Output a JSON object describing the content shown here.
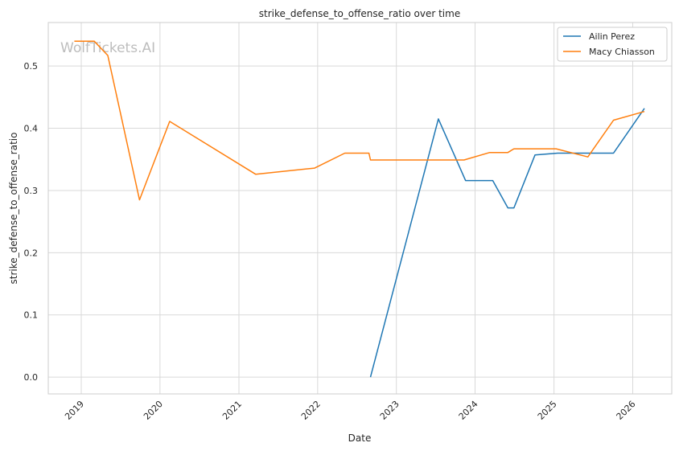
{
  "chart_data": {
    "type": "line",
    "title": "strike_defense_to_offense_ratio over time",
    "xlabel": "Date",
    "ylabel": "strike_defense_to_offense_ratio",
    "watermark": "WolfTickets.AI",
    "xlim": [
      "2018-08-01",
      "2026-07-01"
    ],
    "ylim": [
      -0.027,
      0.57
    ],
    "x_ticks": [
      "2019",
      "2020",
      "2021",
      "2022",
      "2023",
      "2024",
      "2025",
      "2026"
    ],
    "y_ticks": [
      "0.0",
      "0.1",
      "0.2",
      "0.3",
      "0.4",
      "0.5"
    ],
    "grid": true,
    "legend_position": "top-right",
    "series": [
      {
        "name": "Ailin Perez",
        "color": "#1f77b4",
        "points": [
          {
            "x": "2022-09-03",
            "y": 0.0
          },
          {
            "x": "2023-07-15",
            "y": 0.415
          },
          {
            "x": "2023-11-18",
            "y": 0.316
          },
          {
            "x": "2024-03-23",
            "y": 0.316
          },
          {
            "x": "2024-06-01",
            "y": 0.272
          },
          {
            "x": "2024-06-29",
            "y": 0.272
          },
          {
            "x": "2024-10-05",
            "y": 0.357
          },
          {
            "x": "2025-01-18",
            "y": 0.36
          },
          {
            "x": "2025-10-04",
            "y": 0.36
          },
          {
            "x": "2026-02-24",
            "y": 0.432
          }
        ]
      },
      {
        "name": "Macy Chiasson",
        "color": "#ff7f0e",
        "points": [
          {
            "x": "2018-11-30",
            "y": 0.54
          },
          {
            "x": "2019-03-02",
            "y": 0.54
          },
          {
            "x": "2019-05-04",
            "y": 0.517
          },
          {
            "x": "2019-09-28",
            "y": 0.285
          },
          {
            "x": "2020-02-15",
            "y": 0.411
          },
          {
            "x": "2021-03-20",
            "y": 0.326
          },
          {
            "x": "2021-12-18",
            "y": 0.336
          },
          {
            "x": "2022-05-07",
            "y": 0.36
          },
          {
            "x": "2022-08-27",
            "y": 0.36
          },
          {
            "x": "2022-09-03",
            "y": 0.349
          },
          {
            "x": "2023-11-11",
            "y": 0.349
          },
          {
            "x": "2024-03-09",
            "y": 0.361
          },
          {
            "x": "2024-06-01",
            "y": 0.361
          },
          {
            "x": "2024-06-29",
            "y": 0.367
          },
          {
            "x": "2025-01-11",
            "y": 0.367
          },
          {
            "x": "2025-06-07",
            "y": 0.354
          },
          {
            "x": "2025-10-04",
            "y": 0.413
          },
          {
            "x": "2026-02-24",
            "y": 0.427
          }
        ]
      }
    ]
  }
}
